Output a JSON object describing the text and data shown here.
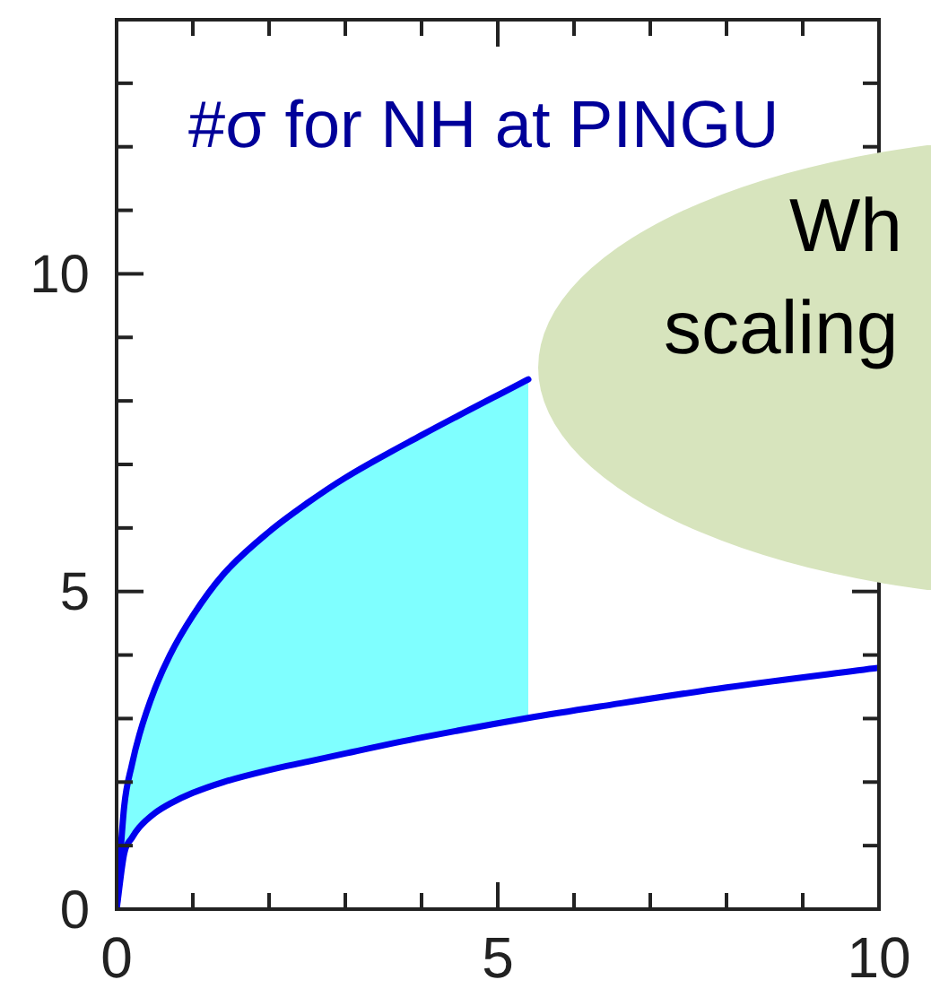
{
  "chart_data": {
    "type": "line",
    "title": "#σ for NH at PINGU",
    "annotations": [
      "Wh",
      "scaling"
    ],
    "x": [
      0,
      0.1,
      0.2,
      0.3,
      0.5,
      0.7,
      1,
      1.4,
      2,
      2.5,
      3,
      4,
      5.4,
      6.5,
      8,
      10
    ],
    "series": [
      {
        "color": "#0000ee",
        "values": [
          0,
          0.88,
          1.12,
          1.29,
          1.51,
          1.66,
          1.83,
          2.0,
          2.19,
          2.32,
          2.45,
          2.7,
          3.01,
          3.22,
          3.49,
          3.8
        ]
      },
      {
        "color": "#0000ee",
        "values": [
          0,
          1.62,
          2.27,
          2.75,
          3.46,
          4.0,
          4.62,
          5.27,
          5.94,
          6.39,
          6.79,
          7.46,
          8.34,
          null,
          null,
          null
        ],
        "lower": [
          0,
          0.88,
          1.12,
          1.29,
          1.51,
          1.66,
          1.83,
          2.0,
          2.19,
          2.32,
          2.45,
          2.7,
          3.01,
          null,
          null,
          null
        ],
        "upper": [
          0,
          1.62,
          2.27,
          2.75,
          3.46,
          4.0,
          4.62,
          5.27,
          5.94,
          6.39,
          6.79,
          7.46,
          8.34,
          null,
          null,
          null
        ]
      }
    ],
    "xlim": [
      0,
      10
    ],
    "ylim": [
      0,
      14
    ],
    "xticks": [
      0,
      {
        "value": 1,
        "label": null
      },
      {
        "value": 2,
        "label": null
      },
      {
        "value": 3,
        "label": null
      },
      {
        "value": 4,
        "label": null
      },
      5,
      {
        "value": 6,
        "label": null
      },
      {
        "value": 7,
        "label": null
      },
      {
        "value": 8,
        "label": null
      },
      {
        "value": 9,
        "label": null
      },
      10
    ],
    "yticks": [
      0,
      {
        "value": 1,
        "label": null
      },
      {
        "value": 2,
        "label": null
      },
      {
        "value": 3,
        "label": null
      },
      {
        "value": 4,
        "label": null
      },
      5,
      {
        "value": 6,
        "label": null
      },
      {
        "value": 7,
        "label": null
      },
      {
        "value": 8,
        "label": null
      },
      {
        "value": 9,
        "label": null
      },
      10,
      {
        "value": 11,
        "label": null
      },
      {
        "value": 12,
        "label": null
      },
      {
        "value": 13,
        "label": null
      }
    ]
  }
}
